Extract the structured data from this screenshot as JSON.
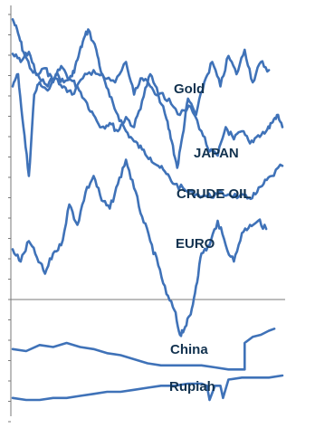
{
  "chart_data": {
    "type": "line",
    "title": "",
    "xlabel": "",
    "ylabel": "",
    "grid": false,
    "legend": "none",
    "colors": {
      "line": "#3f72b8",
      "label": "#12324f",
      "axis": "#7a7a7a"
    },
    "series": [
      {
        "name": "Gold",
        "x": [
          0.0,
          0.02,
          0.04,
          0.07,
          0.1,
          0.13,
          0.16,
          0.19,
          0.22,
          0.24,
          0.26,
          0.28,
          0.31,
          0.33,
          0.36,
          0.39,
          0.42,
          0.45,
          0.48,
          0.51,
          0.54,
          0.57,
          0.6,
          0.64,
          0.68,
          0.72,
          0.76,
          0.8,
          0.84,
          0.87,
          0.9,
          0.93,
          0.96,
          1.0
        ],
        "values": [
          95.0,
          88.0,
          79.0,
          70.0,
          66.0,
          62.0,
          68.0,
          64.0,
          67.0,
          75.0,
          84.0,
          90.0,
          80.0,
          68.0,
          57.0,
          48.0,
          40.0,
          35.0,
          31.0,
          27.0,
          23.0,
          19.0,
          14.0,
          11.0,
          9.0,
          8.0,
          9.0,
          9.0,
          8.0,
          7.0,
          9.0,
          14.0,
          18.0,
          23.0
        ]
      },
      {
        "name": "JAPAN",
        "x": [
          0.0,
          0.03,
          0.06,
          0.09,
          0.12,
          0.15,
          0.18,
          0.21,
          0.24,
          0.27,
          0.3,
          0.33,
          0.36,
          0.39,
          0.42,
          0.45,
          0.48,
          0.51,
          0.54,
          0.57,
          0.59,
          0.61,
          0.63,
          0.65,
          0.68,
          0.71,
          0.74,
          0.77,
          0.8,
          0.83,
          0.86,
          0.89,
          0.92,
          0.95
        ],
        "values": [
          78.0,
          74.0,
          79.0,
          68.0,
          71.0,
          64.0,
          72.0,
          66.0,
          62.0,
          55.0,
          48.0,
          42.0,
          44.0,
          40.0,
          47.0,
          42.0,
          55.0,
          68.0,
          58.0,
          46.0,
          35.0,
          22.0,
          38.0,
          56.0,
          48.0,
          64.0,
          74.0,
          62.0,
          77.0,
          68.0,
          80.0,
          64.0,
          74.0,
          70.0
        ]
      },
      {
        "name": "CRUDE OIL",
        "x": [
          0.0,
          0.02,
          0.04,
          0.06,
          0.08,
          0.1,
          0.13,
          0.16,
          0.19,
          0.22,
          0.26,
          0.3,
          0.34,
          0.38,
          0.42,
          0.45,
          0.48,
          0.51,
          0.54,
          0.58,
          0.62,
          0.66,
          0.7,
          0.73,
          0.76,
          0.79,
          0.82,
          0.85,
          0.88,
          0.91,
          0.94,
          0.96,
          0.98,
          1.0
        ],
        "values": [
          62.0,
          68.0,
          42.0,
          18.0,
          58.0,
          64.0,
          60.0,
          66.0,
          62.0,
          58.0,
          66.0,
          70.0,
          66.0,
          64.0,
          74.0,
          58.0,
          66.0,
          62.0,
          58.0,
          56.0,
          48.0,
          52.0,
          40.0,
          30.0,
          28.0,
          42.0,
          36.0,
          40.0,
          34.0,
          38.0,
          40.0,
          44.0,
          48.0,
          42.0
        ]
      },
      {
        "name": "EURO",
        "x": [
          0.0,
          0.03,
          0.06,
          0.09,
          0.12,
          0.15,
          0.18,
          0.21,
          0.24,
          0.27,
          0.3,
          0.33,
          0.36,
          0.39,
          0.42,
          0.45,
          0.48,
          0.51,
          0.54,
          0.57,
          0.6,
          0.62,
          0.64,
          0.66,
          0.68,
          0.7,
          0.73,
          0.76,
          0.79,
          0.82,
          0.85,
          0.88,
          0.91,
          0.94
        ],
        "values": [
          -18.0,
          -24.0,
          -14.0,
          -22.0,
          -30.0,
          -20.0,
          -16.0,
          4.0,
          -6.0,
          10.0,
          18.0,
          6.0,
          2.0,
          14.0,
          26.0,
          12.0,
          -2.0,
          -14.0,
          -26.0,
          -40.0,
          -48.0,
          -60.0,
          -56.0,
          -50.0,
          -36.0,
          -20.0,
          -16.0,
          -4.0,
          -16.0,
          -24.0,
          -10.0,
          -6.0,
          -4.0,
          -8.0
        ]
      },
      {
        "name": "China",
        "x": [
          0.0,
          0.05,
          0.1,
          0.15,
          0.2,
          0.25,
          0.3,
          0.35,
          0.4,
          0.45,
          0.5,
          0.55,
          0.6,
          0.65,
          0.7,
          0.75,
          0.8,
          0.83,
          0.86,
          0.86,
          0.89,
          0.92,
          0.95,
          0.97
        ],
        "values": [
          -67.0,
          -68.0,
          -65.0,
          -66.0,
          -64.0,
          -66.0,
          -67.0,
          -69.0,
          -70.0,
          -72.0,
          -74.0,
          -75.0,
          -75.0,
          -75.0,
          -75.0,
          -76.0,
          -77.0,
          -77.0,
          -77.0,
          -64.0,
          -61.0,
          -60.0,
          -58.0,
          -57.0
        ]
      },
      {
        "name": "Rupiah",
        "x": [
          0.0,
          0.05,
          0.1,
          0.15,
          0.2,
          0.25,
          0.3,
          0.35,
          0.4,
          0.45,
          0.5,
          0.55,
          0.6,
          0.65,
          0.7,
          0.72,
          0.73,
          0.75,
          0.77,
          0.78,
          0.8,
          0.85,
          0.9,
          0.95,
          1.0
        ],
        "values": [
          -91.0,
          -92.0,
          -92.0,
          -91.0,
          -91.0,
          -90.0,
          -89.0,
          -88.0,
          -88.0,
          -87.0,
          -86.0,
          -85.0,
          -85.0,
          -84.0,
          -84.0,
          -85.0,
          -92.0,
          -85.0,
          -85.0,
          -91.0,
          -82.0,
          -81.0,
          -81.0,
          -81.0,
          -80.0
        ]
      }
    ],
    "labels": [
      "Gold",
      "JAPAN",
      "CRUDE OIL",
      "EURO",
      "China",
      "Rupiah"
    ]
  }
}
